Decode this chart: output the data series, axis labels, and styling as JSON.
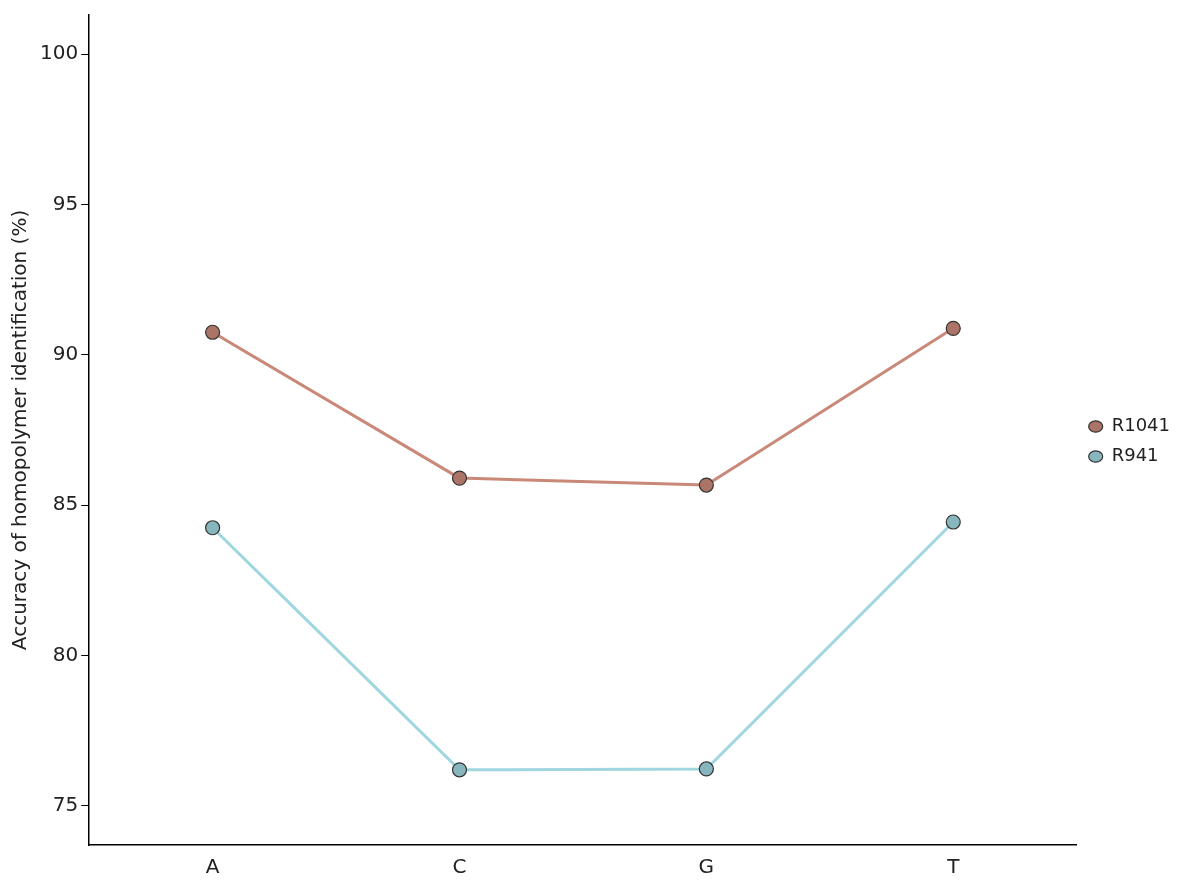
{
  "chart_data": {
    "type": "line",
    "ylabel": "Accuracy of homopolymer identification (%)",
    "categories": [
      "A",
      "C",
      "G",
      "T"
    ],
    "series": [
      {
        "name": "R1041",
        "color": "#c98878",
        "values": [
          90.75,
          85.9,
          85.67,
          90.88
        ]
      },
      {
        "name": "R941",
        "color": "#9fd6df",
        "values": [
          84.25,
          76.2,
          76.23,
          84.44
        ]
      }
    ],
    "ylim": [
      73.7,
      101.3
    ],
    "yticks": [
      75,
      80,
      85,
      90,
      95,
      100
    ],
    "grid": false,
    "legend": "right",
    "marker": "circle",
    "line_style": "solid"
  }
}
